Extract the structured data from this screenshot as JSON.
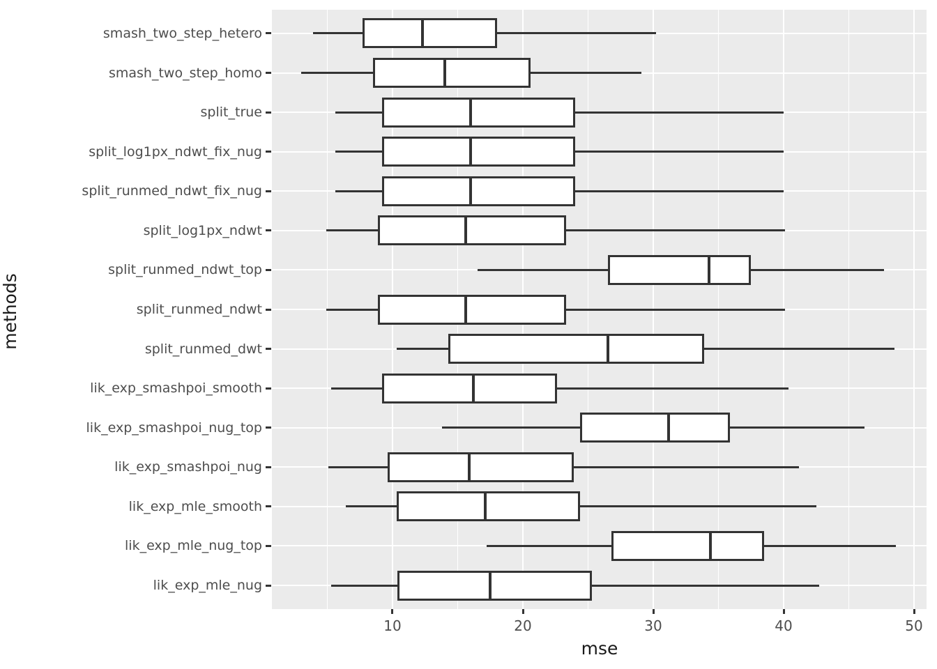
{
  "style": {
    "panel_background": "#EBEBEB",
    "grid_color": "#FFFFFF",
    "box_stroke": "#333333",
    "box_fill": "#FFFFFF",
    "tick_label_color": "#4D4D4D",
    "axis_title_color": "#1A1A1A",
    "figure_background": "#FFFFFF"
  },
  "chart_data": {
    "type": "boxplot",
    "orientation": "horizontal",
    "title": "",
    "xlabel": "mse",
    "ylabel": "methods",
    "xlim": [
      0.75,
      50.96
    ],
    "x_major_ticks": [
      10,
      20,
      30,
      40,
      50
    ],
    "x_minor_ticks": [
      5,
      15,
      25,
      35,
      45
    ],
    "grid": true,
    "legend": false,
    "categories_top_to_bottom": [
      "smash_two_step_hetero",
      "smash_two_step_homo",
      "split_true",
      "split_log1px_ndwt_fix_nug",
      "split_runmed_ndwt_fix_nug",
      "split_log1px_ndwt",
      "split_runmed_ndwt_top",
      "split_runmed_ndwt",
      "split_runmed_dwt",
      "lik_exp_smashpoi_smooth",
      "lik_exp_smashpoi_nug_top",
      "lik_exp_smashpoi_nug",
      "lik_exp_mle_smooth",
      "lik_exp_mle_nug_top",
      "lik_exp_mle_nug"
    ],
    "boxes": [
      {
        "method": "smash_two_step_hetero",
        "whisker_min": 3.9,
        "q1": 7.7,
        "median": 12.3,
        "q3": 18.0,
        "whisker_max": 30.2
      },
      {
        "method": "smash_two_step_homo",
        "whisker_min": 3.0,
        "q1": 8.5,
        "median": 14.0,
        "q3": 20.6,
        "whisker_max": 29.1
      },
      {
        "method": "split_true",
        "whisker_min": 5.6,
        "q1": 9.2,
        "median": 16.0,
        "q3": 24.0,
        "whisker_max": 40.0
      },
      {
        "method": "split_log1px_ndwt_fix_nug",
        "whisker_min": 5.6,
        "q1": 9.2,
        "median": 16.0,
        "q3": 24.0,
        "whisker_max": 40.0
      },
      {
        "method": "split_runmed_ndwt_fix_nug",
        "whisker_min": 5.6,
        "q1": 9.2,
        "median": 16.0,
        "q3": 24.0,
        "whisker_max": 40.0
      },
      {
        "method": "split_log1px_ndwt",
        "whisker_min": 4.9,
        "q1": 8.9,
        "median": 15.6,
        "q3": 23.3,
        "whisker_max": 40.1
      },
      {
        "method": "split_runmed_ndwt_top",
        "whisker_min": 16.5,
        "q1": 26.5,
        "median": 34.3,
        "q3": 37.5,
        "whisker_max": 47.7
      },
      {
        "method": "split_runmed_ndwt",
        "whisker_min": 4.9,
        "q1": 8.9,
        "median": 15.6,
        "q3": 23.3,
        "whisker_max": 40.1
      },
      {
        "method": "split_runmed_dwt",
        "whisker_min": 10.3,
        "q1": 14.3,
        "median": 26.5,
        "q3": 33.9,
        "whisker_max": 48.5
      },
      {
        "method": "lik_exp_smashpoi_smooth",
        "whisker_min": 5.3,
        "q1": 9.2,
        "median": 16.2,
        "q3": 22.6,
        "whisker_max": 40.4
      },
      {
        "method": "lik_exp_smashpoi_nug_top",
        "whisker_min": 13.8,
        "q1": 24.4,
        "median": 31.2,
        "q3": 35.9,
        "whisker_max": 46.2
      },
      {
        "method": "lik_exp_smashpoi_nug",
        "whisker_min": 5.1,
        "q1": 9.6,
        "median": 15.9,
        "q3": 23.9,
        "whisker_max": 41.2
      },
      {
        "method": "lik_exp_mle_smooth",
        "whisker_min": 6.4,
        "q1": 10.3,
        "median": 17.1,
        "q3": 24.4,
        "whisker_max": 42.5
      },
      {
        "method": "lik_exp_mle_nug_top",
        "whisker_min": 17.2,
        "q1": 26.8,
        "median": 34.4,
        "q3": 38.5,
        "whisker_max": 48.6
      },
      {
        "method": "lik_exp_mle_nug",
        "whisker_min": 5.3,
        "q1": 10.4,
        "median": 17.5,
        "q3": 25.3,
        "whisker_max": 42.7
      }
    ]
  }
}
